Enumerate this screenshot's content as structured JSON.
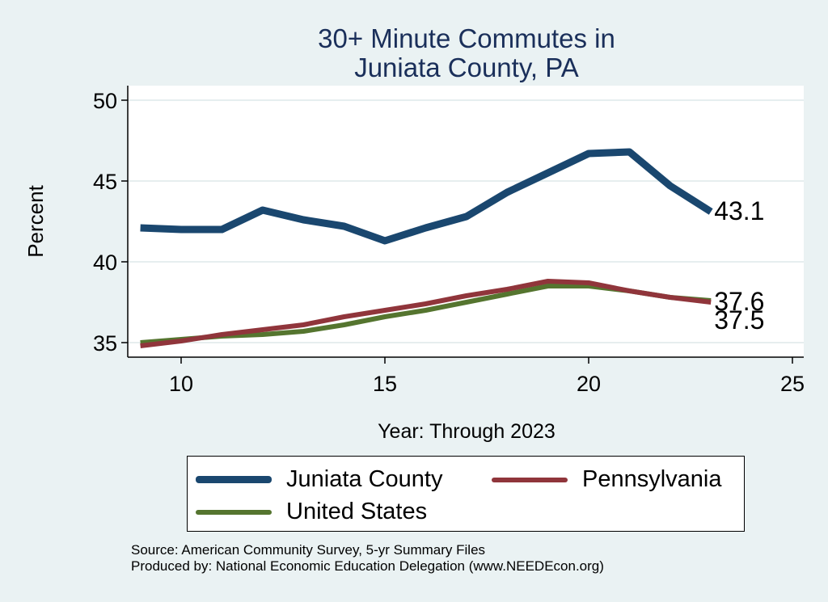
{
  "title_lines": [
    "30+ Minute Commutes in",
    "Juniata County, PA"
  ],
  "chart_data": {
    "type": "line",
    "title": "30+ Minute Commutes in Juniata County, PA",
    "xlabel": "Year: Through 2023",
    "ylabel": "Percent",
    "xlim": [
      9,
      25
    ],
    "ylim": [
      35,
      50
    ],
    "xticks": [
      10,
      15,
      20,
      25
    ],
    "yticks": [
      35,
      40,
      45,
      50
    ],
    "grid": true,
    "legend_position": "bottom",
    "series": [
      {
        "name": "Juniata County",
        "color": "#1a476f",
        "x": [
          9,
          10,
          11,
          12,
          13,
          14,
          15,
          16,
          17,
          18,
          19,
          20,
          21,
          22,
          23
        ],
        "values": [
          42.1,
          42.0,
          42.0,
          43.2,
          42.6,
          42.2,
          41.3,
          42.1,
          42.8,
          44.3,
          45.5,
          46.7,
          46.8,
          44.7,
          43.1
        ],
        "end_label": "43.1"
      },
      {
        "name": "Pennsylvania",
        "color": "#90353b",
        "x": [
          9,
          10,
          11,
          12,
          13,
          14,
          15,
          16,
          17,
          18,
          19,
          20,
          21,
          22,
          23
        ],
        "values": [
          34.8,
          35.1,
          35.5,
          35.8,
          36.1,
          36.6,
          37.0,
          37.4,
          37.9,
          38.3,
          38.8,
          38.7,
          38.2,
          37.8,
          37.5
        ],
        "end_label": "37.5"
      },
      {
        "name": "United States",
        "color": "#55752f",
        "x": [
          9,
          10,
          11,
          12,
          13,
          14,
          15,
          16,
          17,
          18,
          19,
          20,
          21,
          22,
          23
        ],
        "values": [
          35.0,
          35.2,
          35.4,
          35.5,
          35.7,
          36.1,
          36.6,
          37.0,
          37.5,
          38.0,
          38.5,
          38.5,
          38.2,
          37.8,
          37.6
        ],
        "end_label": "37.6"
      }
    ]
  },
  "source_lines": [
    "Source: American Community Survey, 5-yr Summary Files",
    "Produced by: National Economic Education Delegation (www.NEEDEcon.org)"
  ]
}
